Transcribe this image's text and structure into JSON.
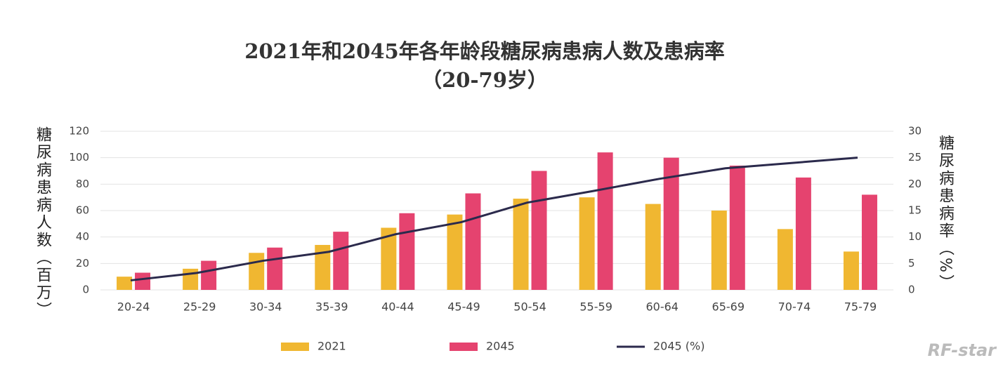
{
  "chart_data": {
    "type": "bar",
    "title": "2021年和2045年各年龄段糖尿病患病人数及患病率",
    "subtitle": "（20-79岁）",
    "y_label": "糖尿病患病人数（百万）",
    "y2_label": "糖尿病患病率（%）",
    "categories": [
      "20-24",
      "25-29",
      "30-34",
      "35-39",
      "40-44",
      "45-49",
      "50-54",
      "55-59",
      "60-64",
      "65-69",
      "70-74",
      "75-79"
    ],
    "series": [
      {
        "name": "2021",
        "type": "bar",
        "color": "#f0b731",
        "values": [
          10,
          16,
          28,
          34,
          47,
          57,
          69,
          70,
          65,
          60,
          46,
          29
        ]
      },
      {
        "name": "2045",
        "type": "bar",
        "color": "#e5436f",
        "values": [
          13,
          22,
          32,
          44,
          58,
          73,
          90,
          104,
          100,
          94,
          85,
          72
        ]
      },
      {
        "name": "2045 (%)",
        "type": "line",
        "axis": "y2",
        "color": "#2b2a4c",
        "values": [
          1.8,
          3.2,
          5.5,
          7.2,
          10.5,
          12.8,
          16.5,
          18.7,
          21,
          23,
          24,
          25
        ]
      }
    ],
    "ylim": [
      0,
      120
    ],
    "yticks": [
      0,
      20,
      40,
      60,
      80,
      100,
      120
    ],
    "y2lim": [
      0,
      30
    ],
    "y2ticks": [
      0,
      5,
      10,
      15,
      20,
      25,
      30
    ],
    "grid": true,
    "legend": "bottom",
    "annotations": [
      "RF-star"
    ]
  }
}
